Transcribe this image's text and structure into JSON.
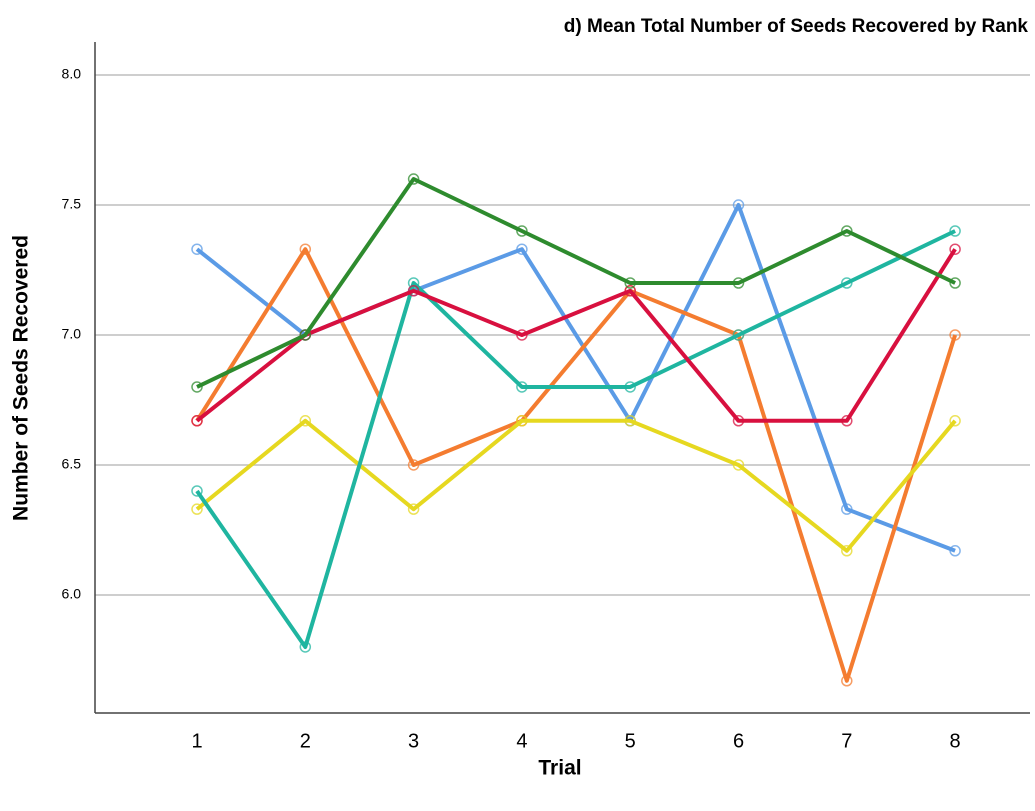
{
  "chart_data": {
    "type": "line",
    "title": "d) Mean Total Number of Seeds Recovered by Rank",
    "x_label": "Trial",
    "y_label": "Number of Seeds Recovered",
    "categories": [
      "1",
      "2",
      "3",
      "4",
      "5",
      "6",
      "7",
      "8"
    ],
    "series": [
      {
        "color": "#5b9be6",
        "values": [
          7.33,
          7.0,
          7.17,
          7.33,
          6.67,
          7.5,
          6.33,
          6.17
        ]
      },
      {
        "color": "#f47c30",
        "values": [
          6.67,
          7.33,
          6.5,
          6.67,
          7.17,
          7.0,
          5.67,
          7.0
        ]
      },
      {
        "color": "#e6d820",
        "values": [
          6.33,
          6.67,
          6.33,
          6.67,
          6.67,
          6.5,
          6.17,
          6.67
        ]
      },
      {
        "color": "#1fb5a0",
        "values": [
          6.4,
          5.8,
          7.2,
          6.8,
          6.8,
          7.0,
          7.2,
          7.4
        ]
      },
      {
        "color": "#d8103f",
        "values": [
          6.67,
          7.0,
          7.17,
          7.0,
          7.17,
          6.67,
          6.67,
          7.33
        ]
      },
      {
        "color": "#2e8b2e",
        "values": [
          6.8,
          7.0,
          7.6,
          7.4,
          7.2,
          7.2,
          7.4,
          7.2
        ]
      }
    ],
    "ylim": [
      5.546,
      8.127
    ],
    "yticks": [
      {
        "value": 6,
        "label": "6.0"
      },
      {
        "value": 6.5,
        "label": "6.5"
      },
      {
        "value": 7,
        "label": "7.0"
      },
      {
        "value": 7.5,
        "label": "7.5"
      },
      {
        "value": 8,
        "label": "8.0"
      }
    ],
    "grid": true,
    "markers": true
  }
}
